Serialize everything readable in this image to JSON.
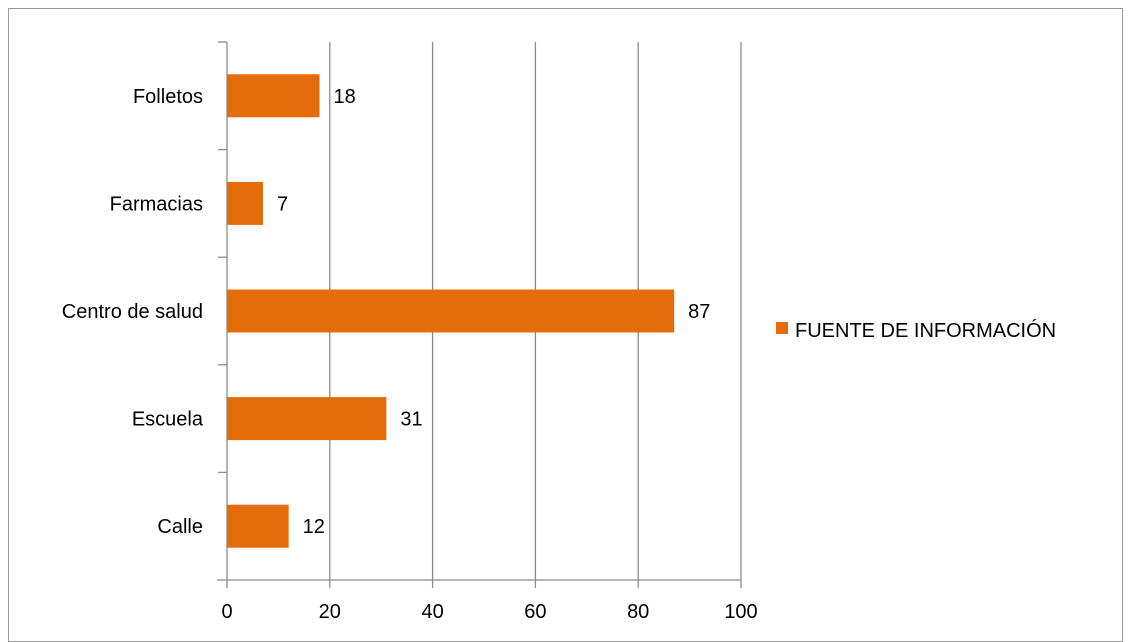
{
  "chart_data": {
    "type": "bar",
    "orientation": "horizontal",
    "title": "",
    "xlabel": "",
    "ylabel": "",
    "categories": [
      "Calle",
      "Escuela",
      "Centro de salud",
      "Farmacias",
      "Folletos"
    ],
    "series": [
      {
        "name": "FUENTE DE INFORMACIÓN",
        "values": [
          12,
          31,
          87,
          7,
          18
        ],
        "color": "#e46c0a"
      }
    ],
    "xlim": [
      0,
      100
    ],
    "x_ticks": [
      "0",
      "20",
      "40",
      "60",
      "80",
      "100"
    ],
    "gridlines": "vertical",
    "data_labels": true,
    "legend_position": "right"
  },
  "colors": {
    "bar": "#e46c0a",
    "grid": "#8c8c8c",
    "border": "#9a9a9a"
  }
}
